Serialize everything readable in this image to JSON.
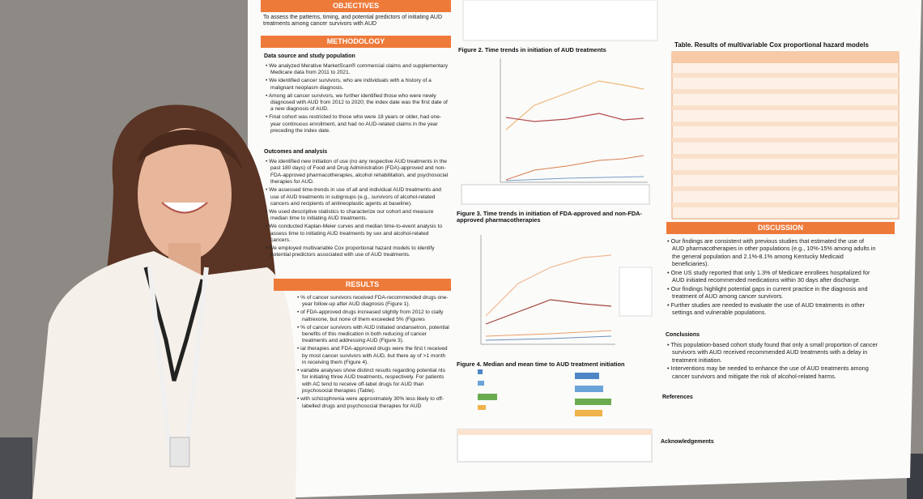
{
  "poster": {
    "objectives": {
      "heading": "OBJECTIVES",
      "text": "To assess the patterns, timing, and potential predictors of initiating AUD treatments among cancer survivors with AUD"
    },
    "methodology": {
      "heading": "METHODOLOGY",
      "sub1": "Data source and study population",
      "bullets1": [
        "We analyzed Merative MarketScan® commercial claims and supplementary Medicare data from 2011 to 2021.",
        "We identified cancer survivors, who are individuals with a history of a malignant neoplasm diagnosis.",
        "Among all cancer survivors, we further identified those who were newly diagnosed with AUD from 2012 to 2020; the index date was the first date of a new diagnosis of AUD.",
        "Final cohort was restricted to those who were 18 years or older, had one-year continuous enrollment, and had no AUD-related claims in the year preceding the index date."
      ],
      "sub2": "Outcomes and analysis",
      "bullets2": [
        "We identified new initiation of use (no any respective AUD treatments in the past 180 days) of Food and Drug Administration (FDA)-approved and non-FDA-approved pharmacotherapies, alcohol rehabilitation, and psychosocial therapies for AUD.",
        "We assessed time-trends in use of all and individual AUD treatments and use of AUD treatments in subgroups (e.g., survivors of alcohol-related cancers and recipients of antineoplastic agents at baseline).",
        "We used descriptive statistics to characterize our cohort and measure median time to initiating AUD treatments.",
        "We conducted Kaplan-Meier curves and median time-to-event analysis to assess time to initiating AUD treatments by sex and alcohol-related cancers.",
        "We employed multivariable Cox proportional hazard models to identify potential predictors associated with use of AUD treatments."
      ]
    },
    "results": {
      "heading": "RESULTS",
      "bullets": [
        "% of cancer survivors received FDA-recommended drugs one-year follow-up after AUD diagnosis (Figure 1).",
        "of FDA-approved drugs increased slightly from 2012 to cially naltrexone, but none of them exceeded 5% (Figures",
        "% of cancer survivors with AUD initiated ondansetron, potential benefits of this medication in both reducing of cancer treatments and addressing AUD (Figure 3).",
        "ial therapies and FDA-approved drugs were the first t received by most cancer survivors with AUD, but there ay of >1 month in receiving them (Figure 4).",
        "variable analyses show distinct results regarding potential nts for initiating three AUD treatments, respectively. For patients with AC tend to receive off-label drugs for AUD than psychosocial therapies (Table).",
        "with schizophrenia were approximately 30% less likely to off-labelled drugs and psychosocial therapies for AUD"
      ]
    },
    "figures": {
      "fig2": "Figure 2. Time trends in initiation of AUD treatments",
      "fig3": "Figure 3. Time trends in initiation of FDA-approved and non-FDA-approved pharmacotherapies",
      "fig4": "Figure 4. Median and mean time to AUD treatment initiation"
    },
    "table": {
      "title": "Table. Results of multivariable Cox proportional hazard models"
    },
    "discussion": {
      "heading": "DISCUSSION",
      "bullets": [
        "Our findings are consistent with previous studies that estimated the use of AUD pharmacotherapies in other populations (e.g., 10%-15% among adults in the general population and 2.1%-8.1% among Kentucky Medicaid beneficiaries).",
        "One US study reported that only 1.3% of Medicare enrollees hospitalized for AUD initiated recommended medications within 30 days after discharge.",
        "Our findings highlight potential gaps in current practice in the diagnosis and treatment of AUD among cancer survivors.",
        "Further studies are needed to evaluate the use of AUD treatments in other settings and vulnerable populations."
      ],
      "conclusions": "Conclusions",
      "conc_bullets": [
        "This population-based cohort study found that only a small proportion of cancer survivors with AUD received recommended AUD treatments with a delay in treatment initiation.",
        "Interventions may be needed to enhance the use of AUD treatments among cancer survivors and mitigate the risk of alcohol-related harms."
      ],
      "references": "References",
      "acknowledgements": "Acknowledgements"
    }
  }
}
